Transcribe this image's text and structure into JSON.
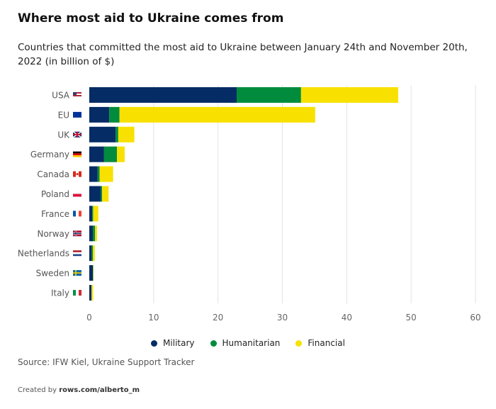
{
  "title": "Where most aid to Ukraine comes from",
  "subtitle": "Countries that committed the most aid to Ukraine between January 24th and November 20th, 2022 (in billion of $)",
  "source": "Source: IFW Kiel, Ukraine Support Tracker",
  "footer": {
    "prefix": "Created by",
    "link": "rows.com/alberto_m"
  },
  "chart_data": {
    "type": "bar",
    "orientation": "horizontal",
    "stacked": true,
    "categories": [
      "USA",
      "EU",
      "UK",
      "Germany",
      "Canada",
      "Poland",
      "France",
      "Norway",
      "Netherlands",
      "Sweden",
      "Italy"
    ],
    "flags": [
      "us",
      "eu",
      "gb",
      "de",
      "ca",
      "pl",
      "fr",
      "no",
      "nl",
      "se",
      "it"
    ],
    "series": [
      {
        "name": "Military",
        "color": "#062c65",
        "values": [
          22.9,
          3.1,
          4.1,
          2.3,
          1.3,
          1.8,
          0.45,
          0.55,
          0.37,
          0.55,
          0.33
        ]
      },
      {
        "name": "Humanitarian",
        "color": "#008c3c",
        "values": [
          10.0,
          1.6,
          0.4,
          2.0,
          0.3,
          0.2,
          0.15,
          0.35,
          0.18,
          0.05,
          0.03
        ]
      },
      {
        "name": "Financial",
        "color": "#f8e100",
        "values": [
          15.1,
          30.4,
          2.5,
          1.2,
          2.1,
          1.0,
          0.8,
          0.3,
          0.3,
          0.05,
          0.24
        ]
      }
    ],
    "xlim": [
      0,
      60
    ],
    "xticks": [
      0,
      10,
      20,
      30,
      40,
      50,
      60
    ],
    "grid": true,
    "legend": "bottom"
  }
}
